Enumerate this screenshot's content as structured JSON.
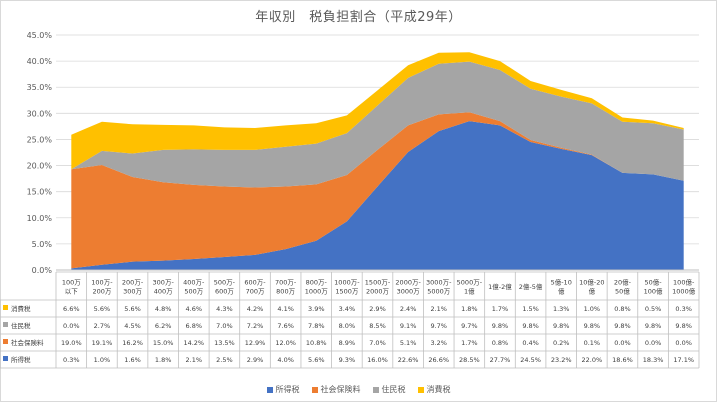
{
  "chart_data": {
    "type": "area",
    "title": "年収別　税負担割合（平成29年）",
    "stacked": true,
    "ylim": [
      0,
      45
    ],
    "yticks": [
      "0.0%",
      "5.0%",
      "10.0%",
      "15.0%",
      "20.0%",
      "25.0%",
      "30.0%",
      "35.0%",
      "40.0%",
      "45.0%"
    ],
    "categories": [
      [
        "100万",
        "以下"
      ],
      [
        "100万-",
        "200万"
      ],
      [
        "200万-",
        "300万"
      ],
      [
        "300万-",
        "400万"
      ],
      [
        "400万-",
        "500万"
      ],
      [
        "500万-",
        "600万"
      ],
      [
        "600万-",
        "700万"
      ],
      [
        "700万-",
        "800万"
      ],
      [
        "800万-",
        "1000万"
      ],
      [
        "1000万-",
        "1500万"
      ],
      [
        "1500万-",
        "2000万"
      ],
      [
        "2000万-",
        "3000万"
      ],
      [
        "3000万-",
        "5000万"
      ],
      [
        "5000万-",
        "1億"
      ],
      [
        "1億-2億"
      ],
      [
        "2億-5億"
      ],
      [
        "5億-10",
        "億"
      ],
      [
        "10億-20",
        "億"
      ],
      [
        "20億-",
        "50億"
      ],
      [
        "50億-",
        "100億"
      ],
      [
        "100億-",
        "1000億"
      ]
    ],
    "series": [
      {
        "name": "所得税",
        "color": "#4472c4",
        "values": [
          0.3,
          1.0,
          1.6,
          1.8,
          2.1,
          2.5,
          2.9,
          4.0,
          5.6,
          9.3,
          16.0,
          22.6,
          26.6,
          28.5,
          27.7,
          24.5,
          23.2,
          22.0,
          18.6,
          18.3,
          17.1
        ],
        "labels": [
          "0.3%",
          "1.0%",
          "1.6%",
          "1.8%",
          "2.1%",
          "2.5%",
          "2.9%",
          "4.0%",
          "5.6%",
          "9.3%",
          "16.0%",
          "22.6%",
          "26.6%",
          "28.5%",
          "27.7%",
          "24.5%",
          "23.2%",
          "22.0%",
          "18.6%",
          "18.3%",
          "17.1%"
        ]
      },
      {
        "name": "社会保険料",
        "color": "#ed7d31",
        "values": [
          19.0,
          19.1,
          16.2,
          15.0,
          14.2,
          13.5,
          12.9,
          12.0,
          10.8,
          8.9,
          7.0,
          5.1,
          3.2,
          1.7,
          0.8,
          0.4,
          0.2,
          0.1,
          0.0,
          0.0,
          0.0
        ],
        "labels": [
          "19.0%",
          "19.1%",
          "16.2%",
          "15.0%",
          "14.2%",
          "13.5%",
          "12.9%",
          "12.0%",
          "10.8%",
          "8.9%",
          "7.0%",
          "5.1%",
          "3.2%",
          "1.7%",
          "0.8%",
          "0.4%",
          "0.2%",
          "0.1%",
          "0.0%",
          "0.0%",
          "0.0%"
        ]
      },
      {
        "name": "住民税",
        "color": "#a5a5a5",
        "values": [
          0.0,
          2.7,
          4.5,
          6.2,
          6.8,
          7.0,
          7.2,
          7.6,
          7.8,
          8.0,
          8.5,
          9.1,
          9.7,
          9.7,
          9.8,
          9.8,
          9.8,
          9.8,
          9.8,
          9.8,
          9.8
        ],
        "labels": [
          "0.0%",
          "2.7%",
          "4.5%",
          "6.2%",
          "6.8%",
          "7.0%",
          "7.2%",
          "7.6%",
          "7.8%",
          "8.0%",
          "8.5%",
          "9.1%",
          "9.7%",
          "9.7%",
          "9.8%",
          "9.8%",
          "9.8%",
          "9.8%",
          "9.8%",
          "9.8%",
          "9.8%"
        ]
      },
      {
        "name": "消費税",
        "color": "#ffc000",
        "values": [
          6.6,
          5.6,
          5.6,
          4.8,
          4.6,
          4.3,
          4.2,
          4.1,
          3.9,
          3.4,
          2.9,
          2.4,
          2.1,
          1.8,
          1.7,
          1.5,
          1.3,
          1.0,
          0.8,
          0.5,
          0.3
        ],
        "labels": [
          "6.6%",
          "5.6%",
          "5.6%",
          "4.8%",
          "4.6%",
          "4.3%",
          "4.2%",
          "4.1%",
          "3.9%",
          "3.4%",
          "2.9%",
          "2.4%",
          "2.1%",
          "1.8%",
          "1.7%",
          "1.5%",
          "1.3%",
          "1.0%",
          "0.8%",
          "0.5%",
          "0.3%"
        ]
      }
    ],
    "table_row_order": [
      3,
      2,
      1,
      0
    ],
    "legend_order": [
      0,
      1,
      2,
      3
    ],
    "legend_position": "bottom",
    "grid": true
  }
}
